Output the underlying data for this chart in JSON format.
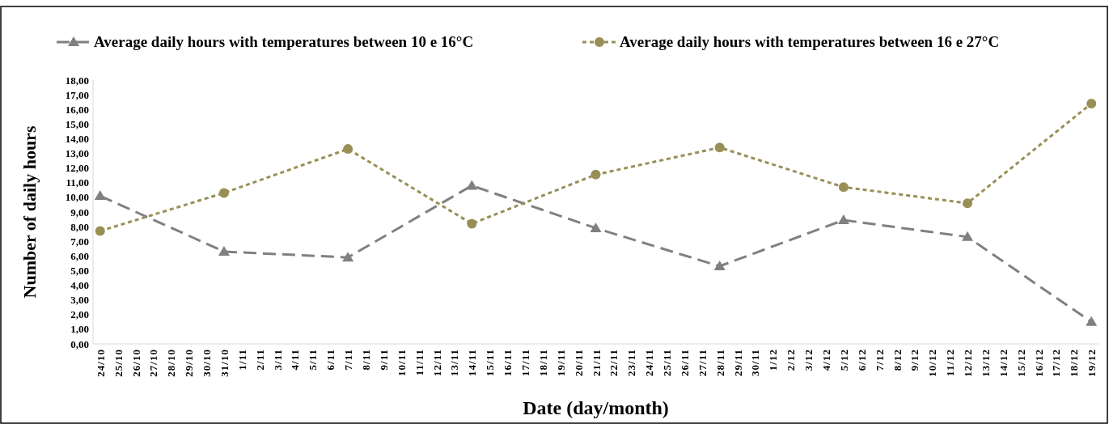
{
  "chart_data": {
    "type": "line",
    "xlabel": "Date (day/month)",
    "ylabel": "Number of daily hours",
    "categories": [
      "24/10",
      "25/10",
      "26/10",
      "27/10",
      "28/10",
      "29/10",
      "30/10",
      "31/10",
      "1/11",
      "2/11",
      "3/11",
      "4/11",
      "5/11",
      "6/11",
      "7/11",
      "8/11",
      "9/11",
      "10/11",
      "11/11",
      "12/11",
      "13/11",
      "14/11",
      "15/11",
      "16/11",
      "17/11",
      "18/11",
      "19/11",
      "20/11",
      "21/11",
      "22/11",
      "23/11",
      "24/11",
      "25/11",
      "26/11",
      "27/11",
      "28/11",
      "29/11",
      "30/11",
      "1/12",
      "2/12",
      "3/12",
      "4/12",
      "5/12",
      "6/12",
      "7/12",
      "8/12",
      "9/12",
      "10/12",
      "11/12",
      "12/12",
      "13/12",
      "14/12",
      "15/12",
      "16/12",
      "17/12",
      "18/12",
      "19/12"
    ],
    "series": [
      {
        "name": "Average daily hours with temperatures between 10 e 16°C",
        "color": "#808080",
        "marker": "triangle",
        "line_style": "dashed",
        "values": [
          10.1,
          null,
          null,
          null,
          null,
          null,
          null,
          6.3,
          null,
          null,
          null,
          null,
          null,
          null,
          5.9,
          null,
          null,
          null,
          null,
          null,
          null,
          10.8,
          null,
          null,
          null,
          null,
          null,
          null,
          7.9,
          null,
          null,
          null,
          null,
          null,
          null,
          5.3,
          null,
          null,
          null,
          null,
          null,
          null,
          8.45,
          null,
          null,
          null,
          null,
          null,
          null,
          7.3,
          null,
          null,
          null,
          null,
          null,
          null,
          1.5
        ]
      },
      {
        "name": "Average daily hours with temperatures between 16 e 27°C",
        "color": "#988f56",
        "marker": "circle",
        "line_style": "dotted",
        "values": [
          7.7,
          null,
          null,
          null,
          null,
          null,
          null,
          10.3,
          null,
          null,
          null,
          null,
          null,
          null,
          13.3,
          null,
          null,
          null,
          null,
          null,
          null,
          8.2,
          null,
          null,
          null,
          null,
          null,
          null,
          11.55,
          null,
          null,
          null,
          null,
          null,
          null,
          13.4,
          null,
          null,
          null,
          null,
          null,
          null,
          10.7,
          null,
          null,
          null,
          null,
          null,
          null,
          9.6,
          null,
          null,
          null,
          null,
          null,
          null,
          16.4
        ]
      }
    ],
    "ylim": [
      0,
      18
    ],
    "yticks": [
      {
        "value": 0,
        "label": "0,00"
      },
      {
        "value": 1,
        "label": "1,00"
      },
      {
        "value": 2,
        "label": "2,00"
      },
      {
        "value": 3,
        "label": "3,00"
      },
      {
        "value": 4,
        "label": "4,00"
      },
      {
        "value": 5,
        "label": "5,00"
      },
      {
        "value": 6,
        "label": "6,00"
      },
      {
        "value": 7,
        "label": "7,00"
      },
      {
        "value": 8,
        "label": "8,00"
      },
      {
        "value": 9,
        "label": "9,00"
      },
      {
        "value": 10,
        "label": "10,00"
      },
      {
        "value": 11,
        "label": "11,00"
      },
      {
        "value": 12,
        "label": "12,00"
      },
      {
        "value": 13,
        "label": "13,00"
      },
      {
        "value": 14,
        "label": "14,00"
      },
      {
        "value": 15,
        "label": "15,00"
      },
      {
        "value": 16,
        "label": "16,00"
      },
      {
        "value": 17,
        "label": "17,00"
      },
      {
        "value": 18,
        "label": "18,00"
      }
    ],
    "grid": false,
    "legend": "top"
  }
}
